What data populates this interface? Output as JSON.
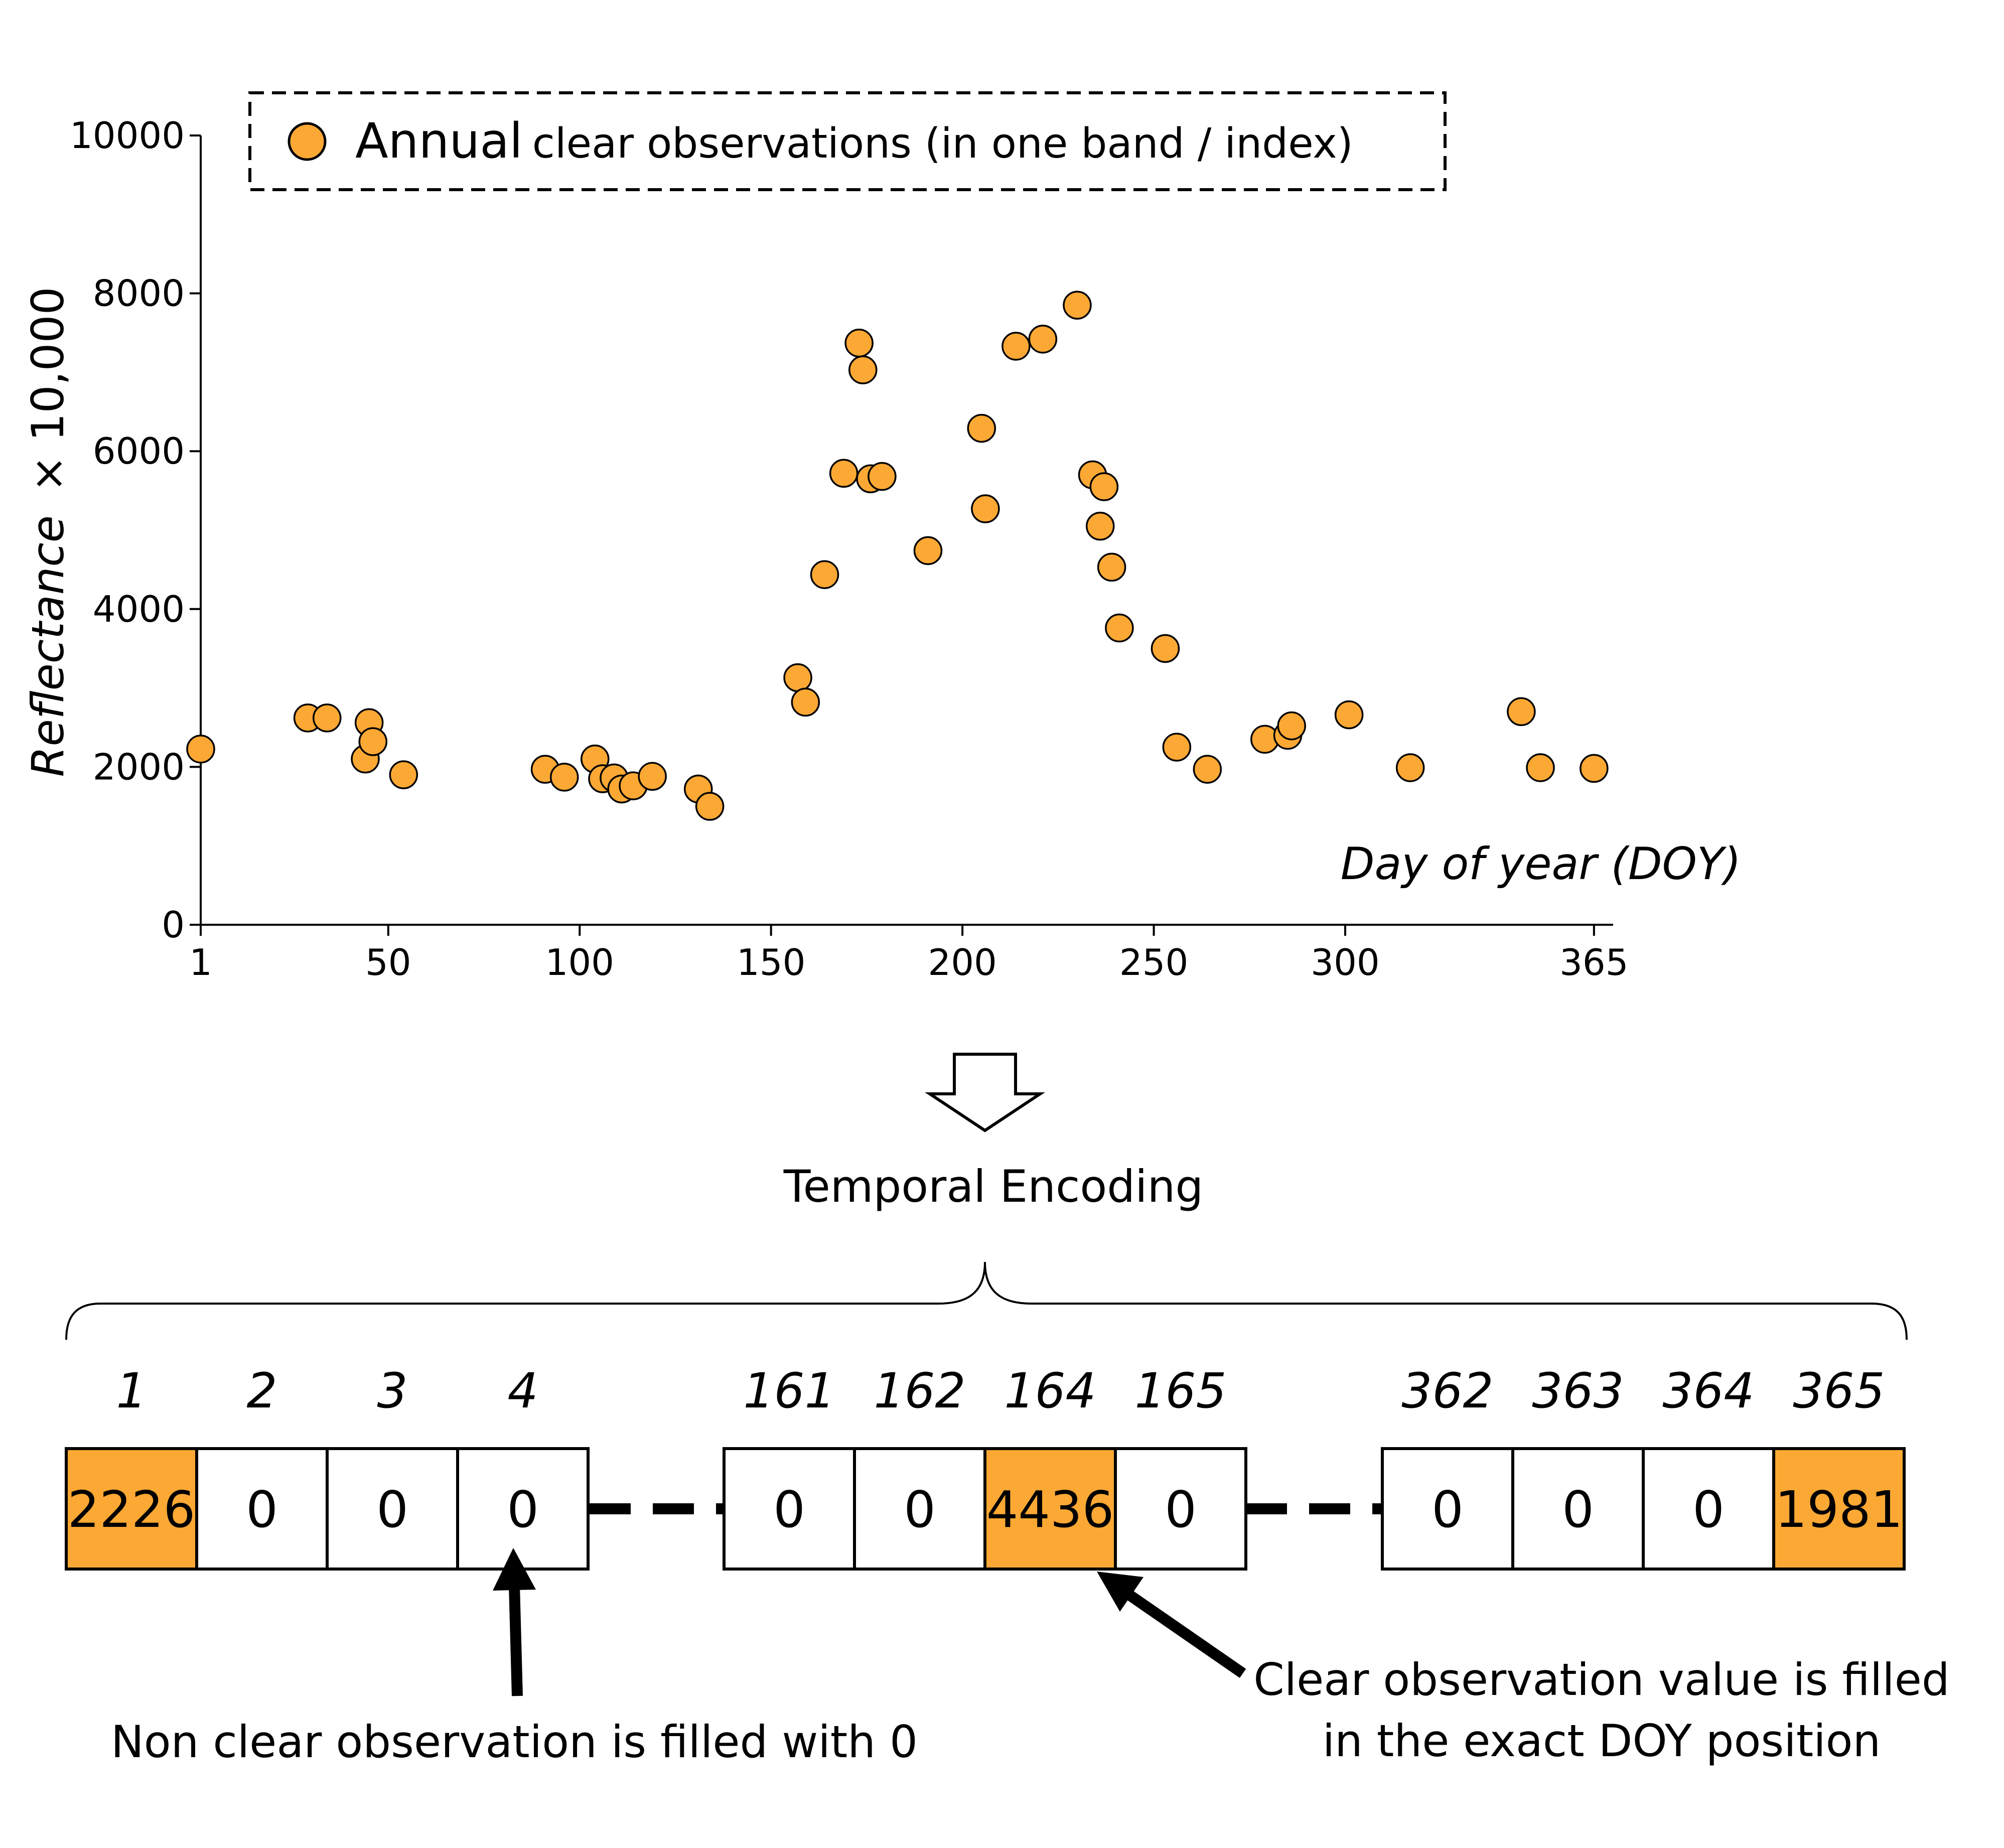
{
  "colors": {
    "accent": "#FBA834",
    "stroke": "#000000",
    "background": "#FFFFFF"
  },
  "legend": {
    "label_main": "Annual",
    "label_rest": "clear observations (in one band / index)"
  },
  "chart_data": {
    "type": "scatter",
    "title": "",
    "xlabel": "Day of year (DOY)",
    "ylabel_italic": "Reflectance",
    "ylabel_rest": "× 10,000",
    "xlim": [
      1,
      370
    ],
    "ylim": [
      0,
      10000
    ],
    "xticks": [
      1,
      50,
      100,
      150,
      200,
      250,
      300,
      365
    ],
    "yticks": [
      0,
      2000,
      4000,
      6000,
      8000,
      10000
    ],
    "series": [
      {
        "name": "Annual clear observations",
        "points": [
          [
            1,
            2226
          ],
          [
            29,
            2620
          ],
          [
            34,
            2620
          ],
          [
            44,
            2100
          ],
          [
            45,
            2560
          ],
          [
            46,
            2320
          ],
          [
            54,
            1900
          ],
          [
            91,
            1970
          ],
          [
            96,
            1870
          ],
          [
            104,
            2100
          ],
          [
            106,
            1850
          ],
          [
            109,
            1860
          ],
          [
            111,
            1720
          ],
          [
            114,
            1760
          ],
          [
            119,
            1880
          ],
          [
            131,
            1720
          ],
          [
            134,
            1500
          ],
          [
            157,
            3130
          ],
          [
            159,
            2820
          ],
          [
            164,
            4436
          ],
          [
            169,
            5720
          ],
          [
            173,
            7370
          ],
          [
            174,
            7030
          ],
          [
            176,
            5650
          ],
          [
            179,
            5680
          ],
          [
            191,
            4740
          ],
          [
            205,
            6290
          ],
          [
            206,
            5270
          ],
          [
            214,
            7330
          ],
          [
            221,
            7420
          ],
          [
            230,
            7850
          ],
          [
            234,
            5700
          ],
          [
            236,
            5050
          ],
          [
            237,
            5550
          ],
          [
            239,
            4530
          ],
          [
            241,
            3760
          ],
          [
            253,
            3500
          ],
          [
            256,
            2250
          ],
          [
            264,
            1970
          ],
          [
            279,
            2350
          ],
          [
            285,
            2400
          ],
          [
            286,
            2520
          ],
          [
            301,
            2660
          ],
          [
            317,
            1990
          ],
          [
            346,
            2700
          ],
          [
            351,
            1990
          ],
          [
            365,
            1981
          ]
        ]
      }
    ]
  },
  "encoding": {
    "title": "Temporal Encoding",
    "groups": [
      {
        "cells": [
          {
            "doy": "1",
            "value": "2226",
            "filled": true
          },
          {
            "doy": "2",
            "value": "0",
            "filled": false
          },
          {
            "doy": "3",
            "value": "0",
            "filled": false
          },
          {
            "doy": "4",
            "value": "0",
            "filled": false
          }
        ]
      },
      {
        "cells": [
          {
            "doy": "161",
            "value": "0",
            "filled": false
          },
          {
            "doy": "162",
            "value": "0",
            "filled": false
          },
          {
            "doy": "164",
            "value": "4436",
            "filled": true
          },
          {
            "doy": "165",
            "value": "0",
            "filled": false
          }
        ]
      },
      {
        "cells": [
          {
            "doy": "362",
            "value": "0",
            "filled": false
          },
          {
            "doy": "363",
            "value": "0",
            "filled": false
          },
          {
            "doy": "364",
            "value": "0",
            "filled": false
          },
          {
            "doy": "365",
            "value": "1981",
            "filled": true
          }
        ]
      }
    ],
    "note_nonclear": "Non clear observation is filled with 0",
    "note_clear_line1": "Clear observation value is filled",
    "note_clear_line2": "in the exact DOY position"
  }
}
